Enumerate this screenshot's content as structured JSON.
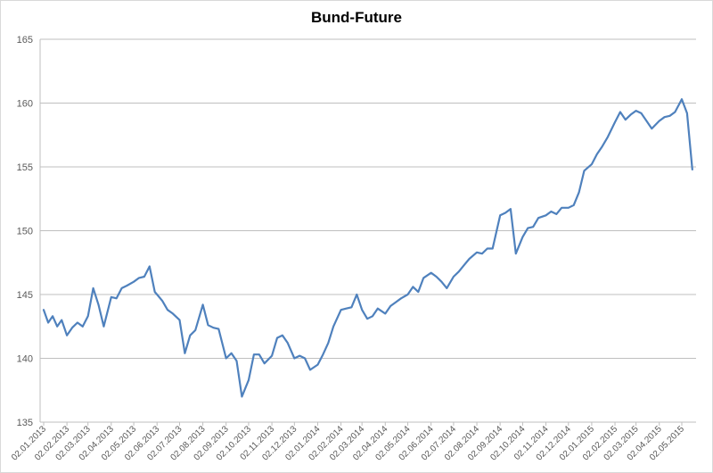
{
  "chart_data": {
    "type": "line",
    "title": "Bund-Future",
    "xlabel": "",
    "ylabel": "",
    "ylim": [
      135,
      165
    ],
    "y_ticks": [
      "135",
      "140",
      "145",
      "150",
      "155",
      "160",
      "165"
    ],
    "x_tick_labels": [
      "02.01.2013",
      "02.02.2013",
      "02.03.2013",
      "02.04.2013",
      "02.05.2013",
      "02.06.2013",
      "02.07.2013",
      "02.08.2013",
      "02.09.2013",
      "02.10.2013",
      "02.11.2013",
      "02.12.2013",
      "02.01.2014",
      "02.02.2014",
      "02.03.2014",
      "02.04.2014",
      "02.05.2014",
      "02.06.2014",
      "02.07.2014",
      "02.08.2014",
      "02.09.2014",
      "02.10.2014",
      "02.11.2014",
      "02.12.2014",
      "02.01.2015",
      "02.02.2015",
      "02.03.2015",
      "02.04.2015",
      "02.05.2015"
    ],
    "grid": "horizontal",
    "legend": "none",
    "line_color": "#4f81bd",
    "series": [
      {
        "x": [
          "2013-01-02",
          "2013-01-08",
          "2013-01-14",
          "2013-01-20",
          "2013-01-26",
          "2013-02-02",
          "2013-02-09",
          "2013-02-16",
          "2013-02-23",
          "2013-03-02",
          "2013-03-09",
          "2013-03-16",
          "2013-03-23",
          "2013-04-02",
          "2013-04-09",
          "2013-04-16",
          "2013-04-23",
          "2013-05-02",
          "2013-05-09",
          "2013-05-16",
          "2013-05-23",
          "2013-05-30",
          "2013-06-02",
          "2013-06-09",
          "2013-06-16",
          "2013-06-23",
          "2013-07-02",
          "2013-07-09",
          "2013-07-16",
          "2013-07-23",
          "2013-08-02",
          "2013-08-09",
          "2013-08-16",
          "2013-08-23",
          "2013-09-02",
          "2013-09-09",
          "2013-09-16",
          "2013-09-23",
          "2013-10-02",
          "2013-10-09",
          "2013-10-16",
          "2013-10-23",
          "2013-11-02",
          "2013-11-09",
          "2013-11-16",
          "2013-11-23",
          "2013-12-02",
          "2013-12-09",
          "2013-12-16",
          "2013-12-23",
          "2014-01-02",
          "2014-01-09",
          "2014-01-16",
          "2014-01-23",
          "2014-02-02",
          "2014-02-09",
          "2014-02-16",
          "2014-02-23",
          "2014-03-02",
          "2014-03-09",
          "2014-03-16",
          "2014-03-23",
          "2014-04-02",
          "2014-04-09",
          "2014-04-16",
          "2014-04-23",
          "2014-05-02",
          "2014-05-09",
          "2014-05-16",
          "2014-05-23",
          "2014-06-02",
          "2014-06-09",
          "2014-06-16",
          "2014-06-23",
          "2014-07-02",
          "2014-07-09",
          "2014-07-16",
          "2014-07-23",
          "2014-08-02",
          "2014-08-09",
          "2014-08-16",
          "2014-08-23",
          "2014-09-02",
          "2014-09-09",
          "2014-09-16",
          "2014-09-23",
          "2014-10-02",
          "2014-10-09",
          "2014-10-16",
          "2014-10-23",
          "2014-11-02",
          "2014-11-09",
          "2014-11-16",
          "2014-11-23",
          "2014-12-02",
          "2014-12-09",
          "2014-12-16",
          "2014-12-23",
          "2015-01-02",
          "2015-01-09",
          "2015-01-16",
          "2015-01-23",
          "2015-02-02",
          "2015-02-09",
          "2015-02-16",
          "2015-02-23",
          "2015-03-02",
          "2015-03-09",
          "2015-03-16",
          "2015-03-23",
          "2015-04-02",
          "2015-04-09",
          "2015-04-16",
          "2015-04-23",
          "2015-05-02",
          "2015-05-09",
          "2015-05-16"
        ],
        "values": [
          143.8,
          142.8,
          143.3,
          142.5,
          143.0,
          141.8,
          142.4,
          142.8,
          142.5,
          143.3,
          145.5,
          144.2,
          142.5,
          144.8,
          144.7,
          145.5,
          145.7,
          146.0,
          146.3,
          146.4,
          147.2,
          145.2,
          145.0,
          144.5,
          143.8,
          143.5,
          143.0,
          140.4,
          141.8,
          142.2,
          144.2,
          142.6,
          142.4,
          142.3,
          140.0,
          140.4,
          139.8,
          137.0,
          138.3,
          140.3,
          140.3,
          139.6,
          140.2,
          141.6,
          141.8,
          141.2,
          140.0,
          140.2,
          140.0,
          139.1,
          139.5,
          140.3,
          141.2,
          142.5,
          143.8,
          143.9,
          144.0,
          145.0,
          143.8,
          143.1,
          143.3,
          143.9,
          143.5,
          144.1,
          144.4,
          144.7,
          145.0,
          145.6,
          145.2,
          146.3,
          146.7,
          146.4,
          146.0,
          145.5,
          146.4,
          146.8,
          147.3,
          147.8,
          148.3,
          148.2,
          148.6,
          148.6,
          151.2,
          151.4,
          151.7,
          148.2,
          149.5,
          150.2,
          150.3,
          151.0,
          151.2,
          151.5,
          151.3,
          151.8,
          151.8,
          152.0,
          153.0,
          154.7,
          155.2,
          156.0,
          156.6,
          157.3,
          158.5,
          159.3,
          158.7,
          159.1,
          159.4,
          159.2,
          158.6,
          158.0,
          158.6,
          158.9,
          159.0,
          159.3,
          160.3,
          159.2,
          154.8
        ]
      }
    ]
  }
}
